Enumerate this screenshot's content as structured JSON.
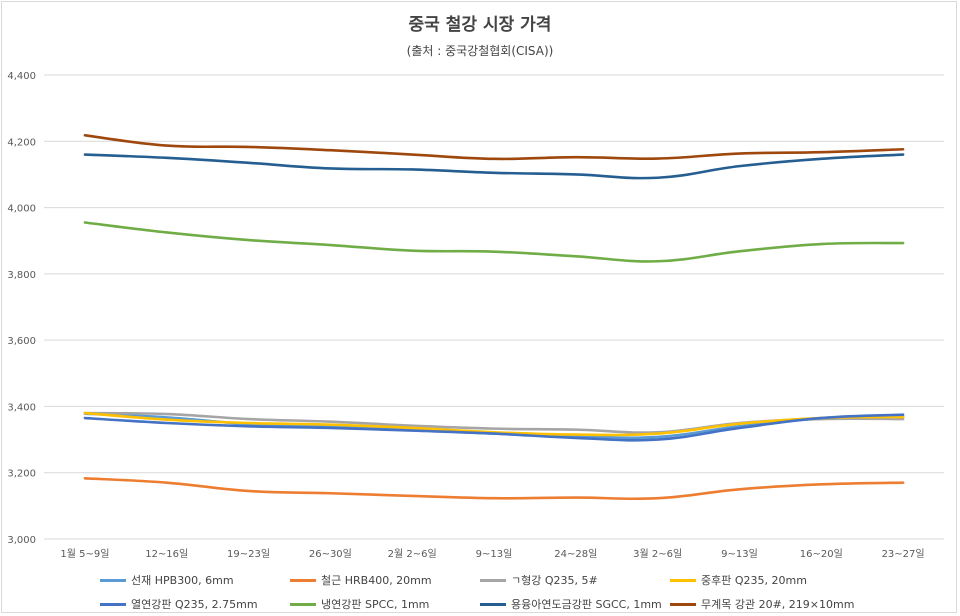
{
  "chart_data": {
    "type": "line",
    "title": "중국 철강 시장 가격",
    "subtitle": "(출처 : 중국강철협회(CISA))",
    "xlabel": "",
    "ylabel": "",
    "ylim": [
      3000,
      4400
    ],
    "yticks": [
      3000,
      3200,
      3400,
      3600,
      3800,
      4000,
      4200,
      4400
    ],
    "ytick_labels": [
      "3,000",
      "3,200",
      "3,400",
      "3,600",
      "3,800",
      "4,000",
      "4,200",
      "4,400"
    ],
    "categories": [
      "1월 5~9일",
      "12~16일",
      "19~23일",
      "26~30일",
      "2월 2~6일",
      "9~13일",
      "24~28일",
      "3월 2~6일",
      "9~13일",
      "16~20일",
      "23~27일"
    ],
    "grid": true,
    "legend_position": "bottom",
    "series": [
      {
        "name": "선재 HPB300, 6mm",
        "color": "#5b9bd5",
        "values": [
          3378,
          3367,
          3347,
          3340,
          3330,
          3318,
          3310,
          3308,
          3340,
          3365,
          3370
        ]
      },
      {
        "name": "철근 HRB400, 20mm",
        "color": "#ed7d31",
        "values": [
          3183,
          3170,
          3145,
          3138,
          3130,
          3123,
          3125,
          3123,
          3150,
          3165,
          3170
        ]
      },
      {
        "name": "ㄱ형강 Q235, 5#",
        "color": "#a5a5a5",
        "values": [
          3380,
          3377,
          3362,
          3354,
          3342,
          3333,
          3330,
          3322,
          3350,
          3362,
          3362
        ]
      },
      {
        "name": "중후판 Q235, 20mm",
        "color": "#ffc000",
        "values": [
          3380,
          3360,
          3350,
          3345,
          3335,
          3322,
          3315,
          3318,
          3348,
          3365,
          3368
        ]
      },
      {
        "name": "열연강판 Q235, 2.75mm",
        "color": "#4472c4",
        "values": [
          3365,
          3350,
          3340,
          3335,
          3327,
          3318,
          3305,
          3300,
          3335,
          3365,
          3375
        ]
      },
      {
        "name": "냉연강판 SPCC, 1mm",
        "color": "#70ad47",
        "values": [
          3955,
          3925,
          3902,
          3887,
          3870,
          3867,
          3853,
          3838,
          3868,
          3890,
          3893
        ]
      },
      {
        "name": "용융아연도금강판 SGCC, 1mm",
        "color": "#255e91",
        "values": [
          4160,
          4150,
          4135,
          4118,
          4115,
          4105,
          4100,
          4090,
          4125,
          4147,
          4160
        ]
      },
      {
        "name": "무계목 강관 20#, 219×10mm",
        "color": "#9e480e",
        "values": [
          4218,
          4187,
          4183,
          4173,
          4160,
          4147,
          4152,
          4148,
          4163,
          4167,
          4176
        ]
      }
    ]
  }
}
